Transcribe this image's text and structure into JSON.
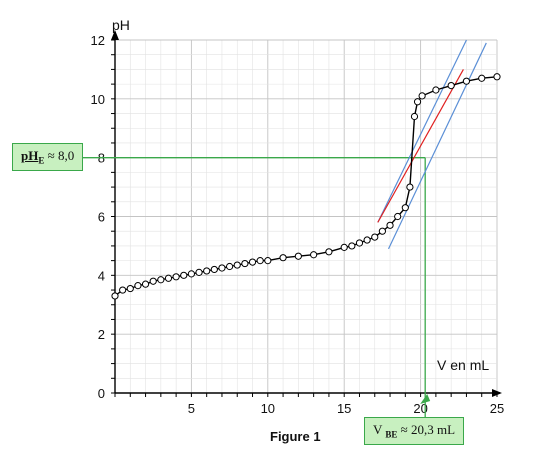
{
  "chart_data": {
    "type": "line",
    "caption": "Figure 1",
    "xlabel": "V en mL",
    "ylabel": "pH",
    "xlim": [
      0,
      25
    ],
    "ylim": [
      0,
      12
    ],
    "grid": true,
    "x_ticks": [
      0,
      5,
      10,
      15,
      20,
      25
    ],
    "x_tick_labels": [
      "5",
      "10",
      "15",
      "20",
      "25"
    ],
    "y_ticks": [
      0,
      2,
      4,
      6,
      8,
      10,
      12
    ],
    "series": [
      {
        "x": [
          0,
          0.5,
          1,
          1.5,
          2,
          2.5,
          3,
          3.5,
          4,
          4.5,
          5,
          5.5,
          6,
          6.5,
          7,
          7.5,
          8,
          8.5,
          9,
          9.5,
          10,
          11,
          12,
          13,
          14,
          15,
          15.5,
          16,
          16.5,
          17,
          17.5,
          18,
          18.5,
          19,
          19.3,
          19.6,
          19.8,
          20.1,
          21,
          22,
          23,
          24,
          25
        ],
        "y": [
          3.3,
          3.5,
          3.55,
          3.65,
          3.7,
          3.8,
          3.85,
          3.9,
          3.95,
          4.0,
          4.05,
          4.1,
          4.15,
          4.2,
          4.25,
          4.3,
          4.35,
          4.4,
          4.45,
          4.5,
          4.5,
          4.6,
          4.65,
          4.7,
          4.8,
          4.95,
          5.0,
          5.1,
          5.2,
          5.3,
          5.5,
          5.7,
          6.0,
          6.3,
          7.0,
          9.4,
          9.9,
          10.1,
          10.3,
          10.45,
          10.6,
          10.7,
          10.75
        ]
      }
    ],
    "tangent_lines": [
      {
        "color": "#5b8fd6",
        "x": [
          17.9,
          24.3
        ],
        "y": [
          4.9,
          11.9
        ]
      },
      {
        "color": "#5b8fd6",
        "x": [
          17.2,
          23.0
        ],
        "y": [
          5.8,
          12.0
        ]
      },
      {
        "color": "#e02020",
        "x": [
          17.2,
          22.8
        ],
        "y": [
          5.8,
          11.0
        ]
      }
    ],
    "equivalence": {
      "x": 20.3,
      "y": 8.0,
      "color": "#3aa84a"
    },
    "annotations": {
      "ph_label_main": "pH",
      "ph_label_sub": "E",
      "ph_value": " ≈ 8,0",
      "v_label_main": "V ",
      "v_label_sub": "BE",
      "v_value": " ≈ 20,3 mL"
    }
  }
}
